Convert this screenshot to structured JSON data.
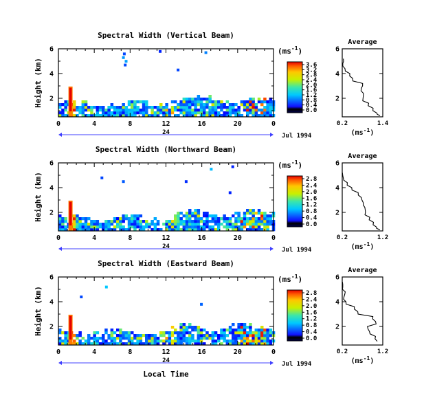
{
  "figure": {
    "x_axis_label": "Local Time",
    "date_label": "Jul 1994",
    "day_label": "24",
    "unit_label": "(ms",
    "unit_exp": "-1",
    "avg_title": "Average",
    "avg_xlabel_base": "(ms",
    "avg_xlabel_exp": "-1"
  },
  "chart_data": [
    {
      "type": "heatmap",
      "title": "Spectral Width (Vertical Beam)",
      "ylabel": "Height (km)",
      "xlim": [
        0,
        24
      ],
      "xticks": [
        "0",
        "4",
        "8",
        "12",
        "16",
        "20",
        "0"
      ],
      "ylim": [
        0.5,
        6
      ],
      "yticks": [
        "6",
        "4",
        "2"
      ],
      "colorbar": {
        "ticks": [
          "3.6",
          "3.2",
          "2.8",
          "2.4",
          "2.0",
          "1.6",
          "1.2",
          "0.8",
          "0.4",
          "0.0"
        ],
        "range": [
          0,
          3.6
        ]
      },
      "average_profile": {
        "xlim": [
          0.2,
          1.4
        ],
        "xticks": [
          "0.2",
          "1.4"
        ],
        "yticks": [
          "6",
          "4",
          "2"
        ],
        "heights": [
          5.2,
          4.8,
          4.4,
          4.0,
          3.6,
          3.2,
          2.8,
          2.4,
          2.0,
          1.6,
          1.2,
          0.8,
          0.6
        ],
        "values": [
          0.25,
          0.22,
          0.3,
          0.42,
          0.52,
          0.8,
          0.75,
          0.82,
          0.8,
          0.95,
          1.1,
          1.25,
          1.35
        ]
      }
    },
    {
      "type": "heatmap",
      "title": "Spectral Width (Northward Beam)",
      "ylabel": "Height (km)",
      "xlim": [
        0,
        24
      ],
      "xticks": [
        "0",
        "4",
        "8",
        "12",
        "16",
        "20",
        "0"
      ],
      "ylim": [
        0.5,
        6
      ],
      "yticks": [
        "6",
        "4",
        "2"
      ],
      "colorbar": {
        "ticks": [
          "2.8",
          "2.4",
          "2.0",
          "1.6",
          "1.2",
          "0.8",
          "0.4",
          "0.0"
        ],
        "range": [
          0,
          2.8
        ]
      },
      "average_profile": {
        "xlim": [
          0.2,
          1.2
        ],
        "xticks": [
          "0.2",
          "1.2"
        ],
        "yticks": [
          "6",
          "4",
          "2"
        ],
        "heights": [
          5.2,
          4.8,
          4.4,
          4.0,
          3.6,
          3.2,
          2.8,
          2.4,
          2.0,
          1.6,
          1.2,
          0.8,
          0.6
        ],
        "values": [
          0.22,
          0.25,
          0.32,
          0.45,
          0.6,
          0.7,
          0.72,
          0.78,
          0.75,
          0.85,
          0.95,
          1.05,
          1.12
        ]
      }
    },
    {
      "type": "heatmap",
      "title": "Spectral Width (Eastward Beam)",
      "ylabel": "Height (km)",
      "xlim": [
        0,
        24
      ],
      "xticks": [
        "0",
        "4",
        "8",
        "12",
        "16",
        "20",
        "0"
      ],
      "ylim": [
        0.5,
        6
      ],
      "yticks": [
        "6",
        "4",
        "2"
      ],
      "colorbar": {
        "ticks": [
          "2.8",
          "2.4",
          "2.0",
          "1.6",
          "1.2",
          "0.8",
          "0.4",
          "0.0"
        ],
        "range": [
          0,
          2.8
        ]
      },
      "average_profile": {
        "xlim": [
          0.2,
          1.2
        ],
        "xticks": [
          "0.2",
          "1.2"
        ],
        "yticks": [
          "6",
          "4",
          "2"
        ],
        "heights": [
          5.6,
          5.2,
          4.8,
          4.4,
          4.0,
          3.6,
          3.2,
          2.8,
          2.4,
          2.0,
          1.6,
          1.2,
          0.8
        ],
        "values": [
          0.22,
          0.2,
          0.25,
          0.22,
          0.3,
          0.5,
          0.6,
          0.95,
          1.05,
          0.85,
          0.9,
          1.0,
          1.08
        ]
      }
    }
  ]
}
